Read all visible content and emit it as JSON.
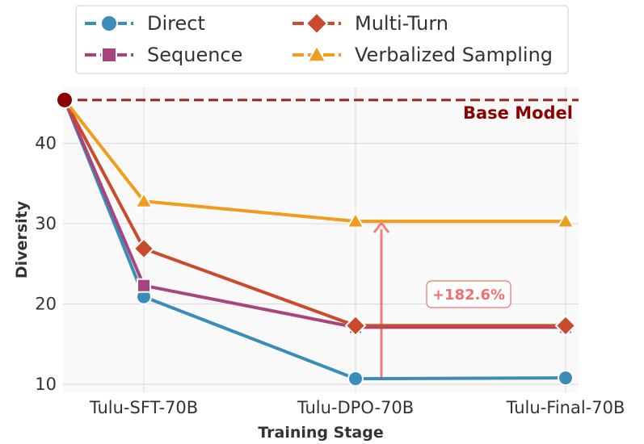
{
  "chart_data": {
    "type": "line",
    "title": "",
    "xlabel": "Training Stage",
    "ylabel": "Diversity",
    "categories": [
      "Tulu-SFT-70B",
      "Tulu-DPO-70B",
      "Tulu-Final-70B"
    ],
    "ylim": [
      9,
      47
    ],
    "yticks": [
      10,
      20,
      30,
      40
    ],
    "grid": true,
    "legend_position": "top",
    "base_point": 45.4,
    "series": [
      {
        "name": "Direct",
        "values": [
          20.9,
          10.7,
          10.8
        ],
        "color": "#3a8db8",
        "marker": "circle"
      },
      {
        "name": "Sequence",
        "values": [
          22.3,
          17.1,
          17.1
        ],
        "color": "#a8457e",
        "marker": "square"
      },
      {
        "name": "Multi-Turn",
        "values": [
          26.9,
          17.3,
          17.3
        ],
        "color": "#cc4a2c",
        "marker": "diamond"
      },
      {
        "name": "Verbalized Sampling",
        "values": [
          32.8,
          30.3,
          30.3
        ],
        "color": "#f29c1e",
        "marker": "triangle"
      }
    ],
    "baseline": {
      "label": "Base Model",
      "value": 45.4,
      "color": "#9b2525"
    },
    "annotation": {
      "text": "+182.6%",
      "from": 10.7,
      "to": 30.3,
      "category": "Tulu-DPO-70B",
      "color": "#f07070"
    }
  }
}
